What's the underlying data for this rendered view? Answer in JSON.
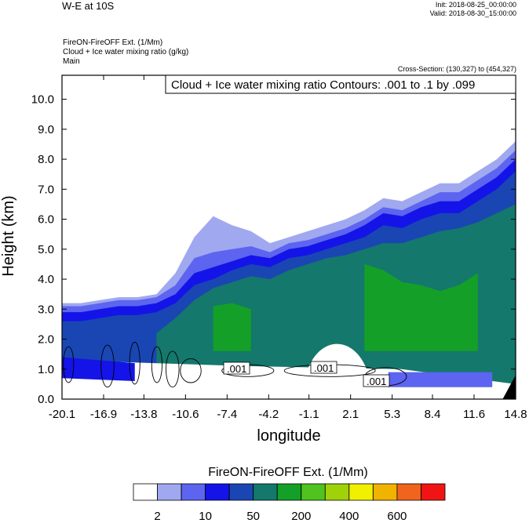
{
  "header": {
    "title": "W-E at 10S",
    "init": "Init: 2018-08-25_00:00:00",
    "valid": "Valid: 2018-08-30_15:00:00",
    "field_lines": [
      "FireON-FireOFF Ext.   (1/Mm)",
      "Cloud + Ice water mixing ratio   (g/kg)",
      "Main"
    ],
    "cross_section": "Cross-Section: (130,327) to (454,327)"
  },
  "contour_label": "Cloud + Ice water mixing ratio Contours: .001 to .1 by .099",
  "inline_contour_labels": [
    ".001",
    ".001",
    ".001"
  ],
  "chart_data": {
    "type": "heatmap",
    "title": "W-E at 10S",
    "xlabel": "longitude",
    "ylabel": "Height (km)",
    "x_ticks": [
      "-20.1",
      "-16.9",
      "-13.8",
      "-10.6",
      "-7.4",
      "-4.2",
      "-1.1",
      "2.1",
      "5.3",
      "8.4",
      "11.6",
      "14.8"
    ],
    "y_ticks": [
      "0.0",
      "1.0",
      "2.0",
      "3.0",
      "4.0",
      "5.0",
      "6.0",
      "7.0",
      "8.0",
      "9.0",
      "10.0"
    ],
    "xlim": [
      -20.1,
      14.8
    ],
    "ylim": [
      0,
      10.8
    ],
    "colorbar": {
      "title": "FireON-FireOFF Ext.  (1/Mm)",
      "colors": [
        "#ffffff",
        "#a0a8f0",
        "#5c64f0",
        "#1414e8",
        "#1a46b4",
        "#14786c",
        "#14a028",
        "#50c31e",
        "#a0d20a",
        "#f0f000",
        "#f0b400",
        "#f0641e",
        "#f01414"
      ],
      "tick_labels": [
        "2",
        "10",
        "50",
        "200",
        "400",
        "600"
      ]
    },
    "layers": [
      {
        "level": "2",
        "color": "#a0a8f0",
        "top_km": [
          3.2,
          3.2,
          3.3,
          3.4,
          3.4,
          3.5,
          4.2,
          5.4,
          6.1,
          5.8,
          5.6,
          5.2,
          5.4,
          5.6,
          5.8,
          6.0,
          6.3,
          6.7,
          6.6,
          6.9,
          7.2,
          7.2,
          7.6,
          8.0,
          8.6
        ]
      },
      {
        "level": "10",
        "color": "#5c64f0",
        "top_km": [
          3.1,
          3.1,
          3.2,
          3.3,
          3.3,
          3.4,
          3.8,
          4.7,
          4.9,
          5.0,
          5.1,
          4.9,
          5.2,
          5.3,
          5.5,
          5.7,
          6.0,
          6.4,
          6.3,
          6.6,
          6.9,
          6.9,
          7.3,
          7.7,
          8.3
        ]
      },
      {
        "level": "50",
        "color": "#1414e8",
        "top_km": [
          2.9,
          2.9,
          3.0,
          3.1,
          3.1,
          3.2,
          3.5,
          4.2,
          4.4,
          4.6,
          4.8,
          4.7,
          5.0,
          5.1,
          5.3,
          5.5,
          5.8,
          6.2,
          6.1,
          6.4,
          6.6,
          6.6,
          7.0,
          7.4,
          8.0
        ]
      },
      {
        "level": "200",
        "color": "#1a46b4",
        "top_km": [
          2.6,
          2.6,
          2.7,
          2.8,
          2.8,
          2.9,
          3.2,
          3.8,
          4.0,
          4.3,
          4.5,
          4.4,
          4.7,
          4.8,
          5.0,
          5.2,
          5.4,
          5.8,
          5.7,
          6.0,
          6.2,
          6.2,
          6.6,
          7.0,
          7.6
        ]
      },
      {
        "level": "400",
        "color": "#14786c",
        "top_km": [
          null,
          null,
          null,
          null,
          null,
          2.2,
          2.7,
          3.3,
          3.7,
          3.9,
          4.1,
          4.0,
          4.3,
          4.5,
          4.7,
          4.8,
          5.0,
          5.2,
          5.2,
          5.4,
          5.6,
          5.7,
          5.9,
          6.2,
          6.5
        ]
      },
      {
        "level": "600",
        "color": "#14a028",
        "top_km": [
          null,
          null,
          null,
          null,
          null,
          null,
          null,
          null,
          3.1,
          3.2,
          3.0,
          null,
          null,
          null,
          null,
          null,
          4.5,
          4.3,
          3.9,
          3.8,
          3.6,
          3.8,
          4.2,
          null,
          null
        ]
      }
    ]
  }
}
